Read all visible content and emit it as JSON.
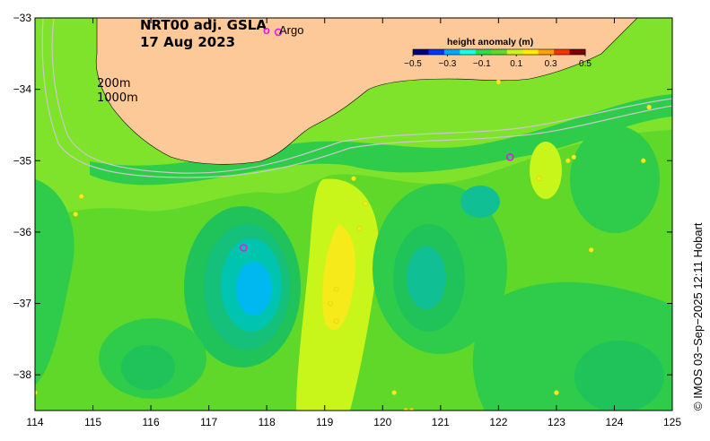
{
  "title": {
    "line1": "NRT00 adj. GSLA",
    "line2": "17 Aug 2023"
  },
  "legend": {
    "argo_marker": "o",
    "argo_label": "Argo",
    "argo_color": "#e619e6"
  },
  "colorbar": {
    "label": "height anomaly (m)",
    "ticks": [
      "−0.5",
      "−0.3",
      "−0.1",
      "0.1",
      "0.3",
      "0.5"
    ],
    "colors": [
      "#00007f",
      "#0035ff",
      "#00a9ff",
      "#19ffe6",
      "#2ddc4a",
      "#5fd82a",
      "#c8f51a",
      "#ffee00",
      "#ffa300",
      "#ff3000",
      "#7f0000"
    ]
  },
  "contours": {
    "label_200": "200m",
    "label_1000": "1000m"
  },
  "axes": {
    "x_ticks": [
      "114",
      "115",
      "116",
      "117",
      "118",
      "119",
      "120",
      "121",
      "122",
      "123",
      "124",
      "125"
    ],
    "y_ticks": [
      "−33",
      "−34",
      "−35",
      "−36",
      "−37",
      "−38"
    ],
    "lon_range": [
      114,
      125
    ],
    "lat_range": [
      -38.5,
      -33
    ]
  },
  "credit": "© IMOS 03−Sep−2025 12:11 Hobart",
  "colors": {
    "land": "#fdc998",
    "sea_base": "#5fd82a",
    "anomaly_high": "#f7ea1a",
    "anomaly_low": "#00b8f0"
  }
}
